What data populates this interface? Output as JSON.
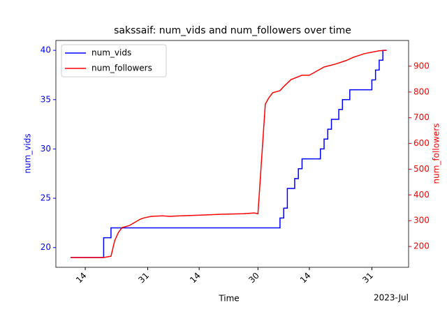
{
  "chart_data": {
    "type": "line",
    "step": "post",
    "title": "sakssaif: num_vids and num_followers over time",
    "xlabel": "Time",
    "ylabel": "num_vids",
    "y2label": "num_followers",
    "x_offset_label": "2023-Jul",
    "xlim": [
      "2023-05-06",
      "2023-08-10"
    ],
    "xticks": [
      {
        "value": "2023-05-14",
        "label": "14"
      },
      {
        "value": "2023-05-31",
        "label": "31"
      },
      {
        "value": "2023-06-14",
        "label": "14"
      },
      {
        "value": "2023-06-30",
        "label": "30"
      },
      {
        "value": "2023-07-14",
        "label": "14"
      },
      {
        "value": "2023-07-31",
        "label": "31"
      }
    ],
    "ylim": [
      18,
      41
    ],
    "yticks": [
      20,
      25,
      30,
      35,
      40
    ],
    "y2lim": [
      119,
      1000
    ],
    "y2ticks": [
      200,
      300,
      400,
      500,
      600,
      700,
      800,
      900
    ],
    "legend": "upper left",
    "series": [
      {
        "name": "num_vids",
        "color": "#0000ff",
        "axis": "y",
        "step": true,
        "x": [
          "2023-05-10",
          "2023-05-19",
          "2023-05-21",
          "2023-07-06",
          "2023-07-07",
          "2023-07-08",
          "2023-07-10",
          "2023-07-11",
          "2023-07-12",
          "2023-07-17",
          "2023-07-18",
          "2023-07-19",
          "2023-07-20",
          "2023-07-22",
          "2023-07-23",
          "2023-07-25",
          "2023-07-31",
          "2023-08-01",
          "2023-08-02",
          "2023-08-03",
          "2023-08-04"
        ],
        "values": [
          19,
          21,
          22,
          23,
          24,
          26,
          27,
          28,
          29,
          30,
          31,
          32,
          33,
          34,
          35,
          36,
          37,
          38,
          39,
          40,
          40
        ]
      },
      {
        "name": "num_followers",
        "color": "#ff0000",
        "axis": "y2",
        "step": false,
        "x": [
          "2023-05-10",
          "2023-05-19",
          "2023-05-21",
          "2023-05-22",
          "2023-05-23",
          "2023-05-24",
          "2023-05-26",
          "2023-05-28",
          "2023-05-29",
          "2023-05-30",
          "2023-06-01",
          "2023-06-04",
          "2023-06-06",
          "2023-06-09",
          "2023-06-15",
          "2023-06-20",
          "2023-06-26",
          "2023-06-29",
          "2023-06-30",
          "2023-07-02",
          "2023-07-03",
          "2023-07-04",
          "2023-07-06",
          "2023-07-07",
          "2023-07-09",
          "2023-07-12",
          "2023-07-14",
          "2023-07-16",
          "2023-07-18",
          "2023-07-21",
          "2023-07-24",
          "2023-07-26",
          "2023-07-29",
          "2023-08-02",
          "2023-08-04"
        ],
        "values": [
          157,
          157,
          162,
          222,
          254,
          273,
          281,
          298,
          306,
          311,
          317,
          319,
          317,
          319,
          322,
          325,
          327,
          330,
          327,
          753,
          778,
          797,
          805,
          821,
          848,
          865,
          865,
          881,
          897,
          908,
          922,
          935,
          949,
          960,
          962
        ]
      }
    ]
  }
}
